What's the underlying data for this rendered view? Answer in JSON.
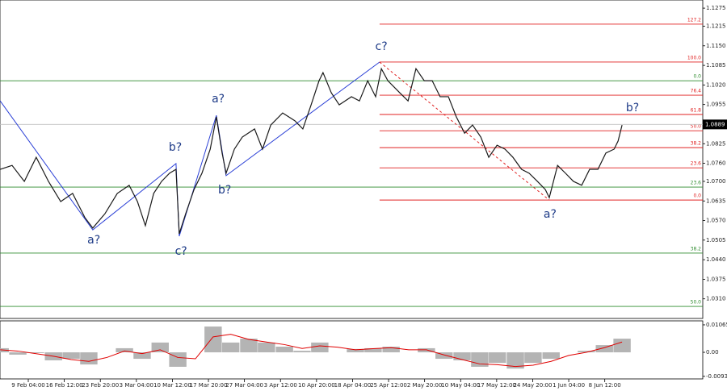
{
  "chart_data": [
    {
      "type": "line",
      "x": [
        0.22,
        0.55,
        0.89,
        1.22,
        1.56,
        1.9,
        2.23,
        2.57,
        2.79,
        3.13,
        3.47,
        3.8,
        4.03,
        4.25,
        4.48,
        4.7,
        4.92,
        5.1,
        5.19,
        5.37,
        5.6,
        5.82,
        6.05,
        6.22,
        6.38,
        6.49,
        6.72,
        6.94,
        7.28,
        7.5,
        7.73,
        8.06,
        8.4,
        8.62,
        8.85,
        9.07,
        9.18,
        9.41,
        9.63,
        9.97,
        10.19,
        10.42,
        10.64,
        10.8,
        10.98,
        11.31,
        11.54,
        11.76,
        11.99,
        12.21,
        12.43,
        12.66,
        12.88,
        13.11,
        13.33,
        13.56,
        13.78,
        14.01,
        14.23,
        14.45,
        14.69,
        14.9,
        15.13,
        15.35,
        15.46,
        15.69,
        15.91,
        16.13,
        16.36,
        16.58,
        16.81,
        17.03,
        17.26,
        17.37,
        17.48
      ],
      "series": [
        {
          "color": "#1a1a1a",
          "values": [
            1.074,
            1.0753,
            1.07,
            1.078,
            1.07,
            1.0633,
            1.066,
            1.058,
            1.0545,
            1.0593,
            1.066,
            1.0687,
            1.0633,
            1.0553,
            1.066,
            1.07,
            1.0727,
            1.074,
            1.0526,
            1.0593,
            1.0673,
            1.0727,
            1.0807,
            1.0914,
            1.0794,
            1.0727,
            1.0807,
            1.0847,
            1.0874,
            1.0807,
            1.0887,
            1.0927,
            1.0901,
            1.0874,
            1.0954,
            1.1034,
            1.1061,
            1.0994,
            1.0954,
            1.0981,
            1.0967,
            1.1034,
            1.0981,
            1.1074,
            1.1034,
            1.0994,
            1.0967,
            1.1074,
            1.1034,
            1.1034,
            1.0981,
            1.0981,
            1.0914,
            1.086,
            1.0887,
            1.0847,
            1.078,
            1.082,
            1.0807,
            1.078,
            1.074,
            1.0727,
            1.07,
            1.0673,
            1.0646,
            1.0753,
            1.0727,
            1.07,
            1.0687,
            1.074,
            1.074,
            1.0794,
            1.0807,
            1.0834,
            1.0887
          ]
        }
      ],
      "xlim": [
        0.215,
        19.72
      ],
      "xticks": [
        {
          "value": 1,
          "label": "9 Feb 04:00"
        },
        {
          "value": 2,
          "label": "16 Feb 12:00"
        },
        {
          "value": 3,
          "label": "23 Feb 20:00"
        },
        {
          "value": 4,
          "label": "3 Mar 04:00"
        },
        {
          "value": 5,
          "label": "10 Mar 12:00"
        },
        {
          "value": 6,
          "label": "17 Mar 20:00"
        },
        {
          "value": 7,
          "label": "27 Mar 04:00"
        },
        {
          "value": 8,
          "label": "3 Apr 12:00"
        },
        {
          "value": 9,
          "label": "10 Apr 20:00"
        },
        {
          "value": 10,
          "label": "18 Apr 04:00"
        },
        {
          "value": 11,
          "label": "25 Apr 12:00"
        },
        {
          "value": 12,
          "label": "2 May 20:00"
        },
        {
          "value": 13,
          "label": "10 May 04:00"
        },
        {
          "value": 14,
          "label": "17 May 12:00"
        },
        {
          "value": 15,
          "label": "24 May 20:00"
        },
        {
          "value": 16,
          "label": "1 Jun 04:00"
        },
        {
          "value": 17,
          "label": "8 Jun 12:00"
        }
      ],
      "ylim": [
        1.0245,
        1.1302
      ],
      "yticks": [
        1.1275,
        1.1215,
        {
          "value": 1.115,
          "label": "1.1150"
        },
        1.1085,
        {
          "value": 1.102,
          "label": "1.1020"
        },
        1.0955,
        1.0825,
        {
          "value": 1.076,
          "label": "1.0760"
        },
        {
          "value": 1.07,
          "label": "1.0700"
        },
        1.0635,
        {
          "value": 1.057,
          "label": "1.0570"
        },
        1.0505,
        {
          "value": 1.044,
          "label": "1.0440"
        },
        1.0375,
        {
          "value": 1.031,
          "label": "1.0310"
        }
      ],
      "last_price": {
        "value": 1.0889,
        "color": "#c0c0c0"
      },
      "levels": [
        {
          "label": "127.2",
          "value": 1.1222,
          "color": "#e02020",
          "start": 10.75
        },
        {
          "label": "100.0",
          "value": 1.1096,
          "color": "#e02020",
          "start": 10.75
        },
        {
          "label": "76.4",
          "value": 1.0986,
          "color": "#e02020",
          "start": 10.75
        },
        {
          "label": "61.8",
          "value": 1.0922,
          "color": "#e02020",
          "start": 10.75
        },
        {
          "label": "50.0",
          "value": 1.0868,
          "color": "#e02020",
          "start": 10.75
        },
        {
          "label": "38.2",
          "value": 1.0812,
          "color": "#e02020",
          "start": 10.75
        },
        {
          "label": "23.6",
          "value": 1.0745,
          "color": "#e02020",
          "start": 10.75
        },
        {
          "label": "0.0",
          "value": 1.0638,
          "color": "#e02020",
          "start": 10.75
        },
        {
          "label": "0.0",
          "value": 1.1034,
          "color": "#2e8b2e"
        },
        {
          "label": "23.6",
          "value": 1.0681,
          "color": "#2e8b2e"
        },
        {
          "label": "38.2",
          "value": 1.0462,
          "color": "#2e8b2e"
        },
        {
          "label": "50.0",
          "value": 1.0285,
          "color": "#2e8b2e"
        }
      ],
      "wave_lines": [
        {
          "color": "#2a3fd6",
          "dash": false,
          "x": [
            0.22,
            2.79,
            5.1,
            5.19,
            6.22,
            6.49,
            10.75
          ],
          "y": [
            1.0967,
            1.0539,
            1.0759,
            1.0518,
            1.0919,
            1.0719,
            1.1096
          ]
        },
        {
          "color": "#e02020",
          "dash": true,
          "x": [
            10.75,
            15.46
          ],
          "y": [
            1.1096,
            1.0638
          ]
        }
      ],
      "annotations": [
        {
          "text": "a?",
          "x": 6.27,
          "y": 1.0973
        },
        {
          "text": "b?",
          "x": 5.08,
          "y": 1.0812
        },
        {
          "text": "b?",
          "x": 6.45,
          "y": 1.067
        },
        {
          "text": "a?",
          "x": 2.82,
          "y": 1.0505
        },
        {
          "text": "c?",
          "x": 5.24,
          "y": 1.0467
        },
        {
          "text": "c?",
          "x": 10.8,
          "y": 1.1147
        },
        {
          "text": "a?",
          "x": 15.48,
          "y": 1.059
        },
        {
          "text": "b?",
          "x": 17.77,
          "y": 1.0943
        }
      ],
      "annotation_color": "#1f3c88"
    },
    {
      "type": "bar",
      "x": [
        0.22,
        0.71,
        1.2,
        1.7,
        2.19,
        2.68,
        3.18,
        3.67,
        4.16,
        4.66,
        5.15,
        5.64,
        6.13,
        6.62,
        7.12,
        7.61,
        8.11,
        8.6,
        9.09,
        9.58,
        10.08,
        10.57,
        11.07,
        11.56,
        12.05,
        12.54,
        13.04,
        13.53,
        14.02,
        14.52,
        15.01,
        15.51,
        16.0,
        16.49,
        16.99,
        17.48
      ],
      "series": [
        {
          "color": "#b4b4b4",
          "values": [
            0.0016,
            -0.0009,
            -0.0003,
            -0.0031,
            -0.0025,
            -0.0047,
            0,
            0.0016,
            -0.0025,
            0.0038,
            -0.0056,
            0,
            0.01,
            0.0038,
            0.0053,
            0.0038,
            0.0022,
            0.0006,
            0.0038,
            0,
            0.0013,
            0.0016,
            0.0022,
            0,
            0.0016,
            -0.0025,
            -0.0031,
            -0.0056,
            -0.0041,
            -0.0063,
            -0.0041,
            -0.0025,
            0,
            0.0006,
            0.0028,
            0.0053
          ]
        },
        {
          "color": "#e00000",
          "type": "line",
          "values": [
            0.001,
            0.0005,
            -0.0005,
            -0.0015,
            -0.0028,
            -0.0035,
            -0.002,
            0.0005,
            -0.0005,
            0.001,
            -0.002,
            -0.0025,
            0.006,
            0.007,
            0.005,
            0.004,
            0.003,
            0.0015,
            0.0025,
            0.002,
            0.001,
            0.0014,
            0.0018,
            0.001,
            0.001,
            -0.001,
            -0.0028,
            -0.0045,
            -0.0048,
            -0.0055,
            -0.005,
            -0.0035,
            -0.0012,
            0,
            0.0018,
            0.004
          ]
        }
      ],
      "ylim": [
        -0.0103,
        0.0122
      ],
      "yticks": [
        0.01065,
        {
          "value": 0,
          "label": "0.00"
        },
        -0.0093
      ]
    }
  ]
}
